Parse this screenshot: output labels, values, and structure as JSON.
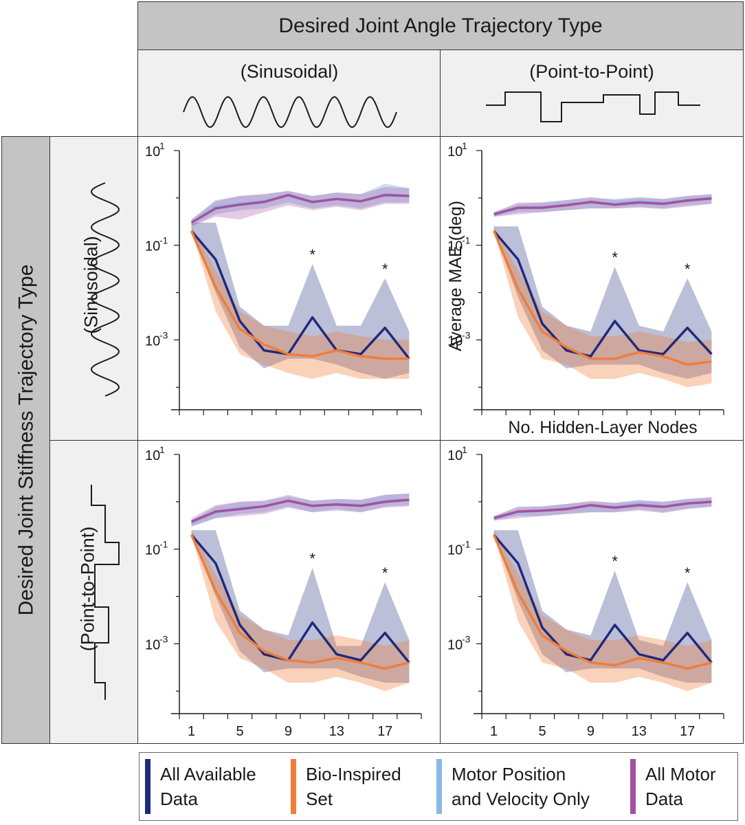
{
  "header": {
    "top": "Desired Joint Angle Trajectory Type",
    "col1": "(Sinusoidal)",
    "col2": "(Point-to-Point)",
    "side": "Desired Joint Stiffness Trajectory Type",
    "row1": "(Sinusoidal)",
    "row2": "(Point-to-Point)"
  },
  "axes": {
    "ylabel": "Average MAE (deg)",
    "xlabel": "No. Hidden-Layer Nodes",
    "xticks": [
      "1",
      "5",
      "9",
      "13",
      "17"
    ],
    "yticks": [
      "10",
      "10",
      "10"
    ],
    "yexps": [
      "1",
      "-1",
      "-3"
    ]
  },
  "legend": [
    {
      "label": "All Available\nData",
      "color": "#1f2a7a"
    },
    {
      "label": "Bio-Inspired\nSet",
      "color": "#f07d3a"
    },
    {
      "label": "Motor Position\nand Velocity Only",
      "color": "#8ab8e6"
    },
    {
      "label": "All Motor\nData",
      "color": "#a4519e"
    }
  ],
  "significance_marker": "*",
  "chart_data": [
    {
      "type": "line",
      "panel": "sinusoidal-angle / sinusoidal-stiffness",
      "yscale": "log",
      "ylim": [
        5e-05,
        10
      ],
      "xlim": [
        0,
        20
      ],
      "x": [
        1,
        3,
        5,
        7,
        9,
        11,
        13,
        15,
        17,
        19
      ],
      "series": [
        {
          "name": "All Available Data",
          "values": [
            0.2,
            0.05,
            0.0025,
            0.0006,
            0.0005,
            0.003,
            0.0006,
            0.0005,
            0.0018,
            0.0004
          ],
          "band_lo": [
            0.2,
            0.01,
            0.0007,
            0.00025,
            0.0004,
            0.0004,
            0.0003,
            0.0002,
            0.00015,
            0.0002
          ],
          "band_hi": [
            0.3,
            0.3,
            0.005,
            0.002,
            0.002,
            0.04,
            0.002,
            0.002,
            0.02,
            0.0015
          ]
        },
        {
          "name": "Bio-Inspired Set",
          "values": [
            0.2,
            0.013,
            0.0017,
            0.0008,
            0.0005,
            0.00045,
            0.0006,
            0.00045,
            0.0004,
            0.0004
          ],
          "band_lo": [
            0.2,
            0.004,
            0.0005,
            0.0003,
            0.0002,
            0.00015,
            0.0002,
            0.00015,
            0.00015,
            0.00015
          ],
          "band_hi": [
            0.25,
            0.03,
            0.004,
            0.002,
            0.0015,
            0.0012,
            0.0015,
            0.0012,
            0.001,
            0.001
          ]
        },
        {
          "name": "Motor Position and Velocity Only",
          "values": [
            0.3,
            0.65,
            0.75,
            0.85,
            1.1,
            0.8,
            0.95,
            0.85,
            1.2,
            1.1
          ],
          "band_lo": [
            0.25,
            0.45,
            0.55,
            0.6,
            0.8,
            0.6,
            0.7,
            0.6,
            0.8,
            0.8
          ],
          "band_hi": [
            0.35,
            0.9,
            1.1,
            1.2,
            1.4,
            1.1,
            1.3,
            1.2,
            2.0,
            1.6
          ]
        },
        {
          "name": "All Motor Data",
          "values": [
            0.3,
            0.6,
            0.72,
            0.82,
            1.15,
            0.82,
            0.95,
            0.85,
            1.15,
            1.1
          ],
          "band_lo": [
            0.25,
            0.4,
            0.35,
            0.5,
            0.7,
            0.55,
            0.65,
            0.55,
            0.75,
            0.75
          ],
          "band_hi": [
            0.35,
            0.85,
            1.1,
            1.2,
            1.4,
            1.1,
            1.3,
            1.2,
            1.7,
            1.6
          ]
        }
      ],
      "annotations": [
        {
          "x": 11,
          "text": "*"
        },
        {
          "x": 17,
          "text": "*"
        }
      ]
    },
    {
      "type": "line",
      "panel": "point-to-point-angle / sinusoidal-stiffness",
      "yscale": "log",
      "ylim": [
        5e-05,
        10
      ],
      "xlim": [
        0,
        20
      ],
      "x": [
        1,
        3,
        5,
        7,
        9,
        11,
        13,
        15,
        17,
        19
      ],
      "series": [
        {
          "name": "All Available Data",
          "values": [
            0.2,
            0.05,
            0.0022,
            0.0006,
            0.00045,
            0.0025,
            0.0006,
            0.0005,
            0.0018,
            0.0005
          ],
          "band_lo": [
            0.2,
            0.008,
            0.0006,
            0.00025,
            0.0003,
            0.0003,
            0.0003,
            0.0002,
            0.00015,
            0.0002
          ],
          "band_hi": [
            0.25,
            0.25,
            0.005,
            0.002,
            0.0015,
            0.035,
            0.002,
            0.0015,
            0.02,
            0.0015
          ]
        },
        {
          "name": "Bio-Inspired Set",
          "values": [
            0.2,
            0.012,
            0.0015,
            0.0007,
            0.0004,
            0.0004,
            0.00055,
            0.00045,
            0.0003,
            0.00035
          ],
          "band_lo": [
            0.2,
            0.003,
            0.0004,
            0.0003,
            0.00015,
            0.00015,
            0.0002,
            0.00015,
            0.0001,
            0.00012
          ],
          "band_hi": [
            0.25,
            0.03,
            0.004,
            0.002,
            0.0012,
            0.0012,
            0.0015,
            0.0012,
            0.0009,
            0.001
          ]
        },
        {
          "name": "Motor Position and Velocity Only",
          "values": [
            0.45,
            0.6,
            0.65,
            0.72,
            0.8,
            0.75,
            0.85,
            0.78,
            0.9,
            0.95
          ],
          "band_lo": [
            0.4,
            0.5,
            0.5,
            0.55,
            0.6,
            0.6,
            0.65,
            0.6,
            0.7,
            0.75
          ],
          "band_hi": [
            0.5,
            0.75,
            0.8,
            0.9,
            1.0,
            0.95,
            1.05,
            0.95,
            1.1,
            1.2
          ]
        },
        {
          "name": "All Motor Data",
          "values": [
            0.45,
            0.62,
            0.62,
            0.7,
            0.82,
            0.72,
            0.8,
            0.75,
            0.88,
            0.98
          ],
          "band_lo": [
            0.4,
            0.45,
            0.5,
            0.55,
            0.6,
            0.6,
            0.62,
            0.58,
            0.65,
            0.75
          ],
          "band_hi": [
            0.5,
            0.8,
            0.8,
            0.9,
            1.05,
            0.9,
            1.0,
            0.95,
            1.1,
            1.2
          ]
        }
      ],
      "annotations": [
        {
          "x": 11,
          "text": "*"
        },
        {
          "x": 17,
          "text": "*"
        }
      ]
    },
    {
      "type": "line",
      "panel": "sinusoidal-angle / point-to-point-stiffness",
      "yscale": "log",
      "ylim": [
        5e-05,
        10
      ],
      "xlim": [
        0,
        20
      ],
      "x": [
        1,
        3,
        5,
        7,
        9,
        11,
        13,
        15,
        17,
        19
      ],
      "series": [
        {
          "name": "All Available Data",
          "values": [
            0.2,
            0.05,
            0.0025,
            0.0006,
            0.00045,
            0.0028,
            0.0006,
            0.00045,
            0.0017,
            0.0004
          ],
          "band_lo": [
            0.2,
            0.01,
            0.0007,
            0.00025,
            0.0003,
            0.0003,
            0.0003,
            0.0002,
            0.00015,
            0.00015
          ],
          "band_hi": [
            0.25,
            0.25,
            0.005,
            0.002,
            0.0015,
            0.04,
            0.0009,
            0.0009,
            0.02,
            0.0012
          ]
        },
        {
          "name": "Bio-Inspired Set",
          "values": [
            0.2,
            0.013,
            0.0017,
            0.0007,
            0.00045,
            0.0004,
            0.0005,
            0.0004,
            0.0003,
            0.0004
          ],
          "band_lo": [
            0.2,
            0.003,
            0.0005,
            0.0003,
            0.00015,
            0.00015,
            0.0002,
            0.00015,
            0.0001,
            0.00015
          ],
          "band_hi": [
            0.25,
            0.03,
            0.004,
            0.002,
            0.0012,
            0.0012,
            0.0015,
            0.0012,
            0.0009,
            0.0012
          ]
        },
        {
          "name": "Motor Position and Velocity Only",
          "values": [
            0.35,
            0.6,
            0.75,
            0.8,
            1.05,
            0.8,
            0.9,
            0.85,
            1.05,
            1.1
          ],
          "band_lo": [
            0.3,
            0.45,
            0.55,
            0.6,
            0.8,
            0.6,
            0.7,
            0.6,
            0.8,
            0.85
          ],
          "band_hi": [
            0.4,
            0.8,
            1.0,
            1.05,
            1.3,
            1.05,
            1.15,
            1.1,
            1.4,
            1.5
          ]
        },
        {
          "name": "All Motor Data",
          "values": [
            0.38,
            0.62,
            0.7,
            0.8,
            1.05,
            0.82,
            0.88,
            0.82,
            1.0,
            1.1
          ],
          "band_lo": [
            0.3,
            0.45,
            0.5,
            0.55,
            0.75,
            0.6,
            0.65,
            0.6,
            0.75,
            0.8
          ],
          "band_hi": [
            0.45,
            0.85,
            1.0,
            1.05,
            1.4,
            1.05,
            1.15,
            1.1,
            1.4,
            1.5
          ]
        }
      ],
      "annotations": [
        {
          "x": 11,
          "text": "*"
        },
        {
          "x": 17,
          "text": "*"
        }
      ]
    },
    {
      "type": "line",
      "panel": "point-to-point-angle / point-to-point-stiffness",
      "yscale": "log",
      "ylim": [
        5e-05,
        10
      ],
      "xlim": [
        0,
        20
      ],
      "x": [
        1,
        3,
        5,
        7,
        9,
        11,
        13,
        15,
        17,
        19
      ],
      "series": [
        {
          "name": "All Available Data",
          "values": [
            0.2,
            0.05,
            0.0022,
            0.0006,
            0.00045,
            0.0025,
            0.0006,
            0.00045,
            0.0017,
            0.0004
          ],
          "band_lo": [
            0.2,
            0.008,
            0.0006,
            0.00025,
            0.0003,
            0.0003,
            0.0003,
            0.0002,
            0.00015,
            0.00015
          ],
          "band_hi": [
            0.25,
            0.25,
            0.005,
            0.002,
            0.0015,
            0.035,
            0.0012,
            0.0009,
            0.02,
            0.0012
          ]
        },
        {
          "name": "Bio-Inspired Set",
          "values": [
            0.2,
            0.012,
            0.0015,
            0.0007,
            0.0004,
            0.00035,
            0.0005,
            0.0004,
            0.0003,
            0.0004
          ],
          "band_lo": [
            0.2,
            0.003,
            0.0004,
            0.0003,
            0.00015,
            0.00015,
            0.0002,
            0.00015,
            0.0001,
            0.00015
          ],
          "band_hi": [
            0.25,
            0.03,
            0.004,
            0.002,
            0.0012,
            0.0012,
            0.0015,
            0.0012,
            0.0009,
            0.0012
          ]
        },
        {
          "name": "Motor Position and Velocity Only",
          "values": [
            0.45,
            0.6,
            0.65,
            0.72,
            0.8,
            0.78,
            0.9,
            0.8,
            0.92,
            1.0
          ],
          "band_lo": [
            0.4,
            0.5,
            0.5,
            0.55,
            0.6,
            0.6,
            0.7,
            0.6,
            0.72,
            0.8
          ],
          "band_hi": [
            0.5,
            0.75,
            0.8,
            0.9,
            1.0,
            0.95,
            1.1,
            1.0,
            1.15,
            1.25
          ]
        },
        {
          "name": "All Motor Data",
          "values": [
            0.45,
            0.62,
            0.65,
            0.7,
            0.85,
            0.75,
            0.85,
            0.78,
            0.92,
            1.0
          ],
          "band_lo": [
            0.4,
            0.45,
            0.5,
            0.55,
            0.6,
            0.6,
            0.65,
            0.58,
            0.7,
            0.78
          ],
          "band_hi": [
            0.5,
            0.8,
            0.8,
            0.9,
            1.05,
            0.95,
            1.05,
            1.0,
            1.15,
            1.25
          ]
        }
      ],
      "annotations": [
        {
          "x": 11,
          "text": "*"
        },
        {
          "x": 17,
          "text": "*"
        }
      ]
    }
  ]
}
